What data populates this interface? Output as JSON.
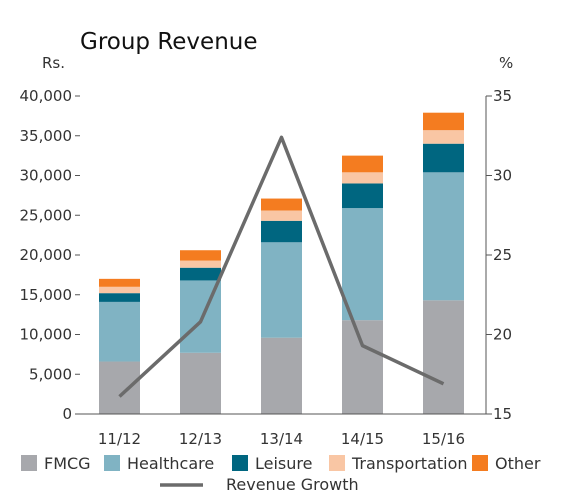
{
  "chart_data": {
    "type": "bar",
    "stacked": true,
    "title": "Group Revenue",
    "y_left_unit": "Rs.",
    "y_right_unit": "%",
    "categories": [
      "11/12",
      "12/13",
      "13/14",
      "14/15",
      "15/16"
    ],
    "ylim": [
      0,
      40000
    ],
    "y_ticks": [
      "0",
      "5,000",
      "10,000",
      "15,000",
      "20,000",
      "25,000",
      "30,000",
      "35,000",
      "40,000"
    ],
    "y_tick_values": [
      0,
      5000,
      10000,
      15000,
      20000,
      25000,
      30000,
      35000,
      40000
    ],
    "y2lim": [
      15,
      35
    ],
    "y2_ticks": [
      "15",
      "20",
      "25",
      "30",
      "35"
    ],
    "y2_tick_values": [
      15,
      20,
      25,
      30,
      35
    ],
    "series": [
      {
        "name": "FMCG",
        "color": "#a7a8ac",
        "values": [
          6600,
          7700,
          9600,
          11800,
          14300
        ]
      },
      {
        "name": "Healthcare",
        "color": "#80b3c3",
        "values": [
          7500,
          9100,
          12000,
          14100,
          16100
        ]
      },
      {
        "name": "Leisure",
        "color": "#006680",
        "values": [
          1100,
          1600,
          2700,
          3100,
          3600
        ]
      },
      {
        "name": "Transportation",
        "color": "#f9c6a4",
        "values": [
          800,
          900,
          1300,
          1400,
          1700
        ]
      },
      {
        "name": "Other",
        "color": "#f47c20",
        "values": [
          1000,
          1300,
          1500,
          2100,
          2200
        ]
      }
    ],
    "line_series": {
      "name": "Revenue Growth",
      "color": "#6b6b6b",
      "axis": "right",
      "values": [
        16.1,
        20.8,
        32.4,
        19.3,
        16.9
      ]
    },
    "grid": false,
    "legend": "bottom"
  }
}
